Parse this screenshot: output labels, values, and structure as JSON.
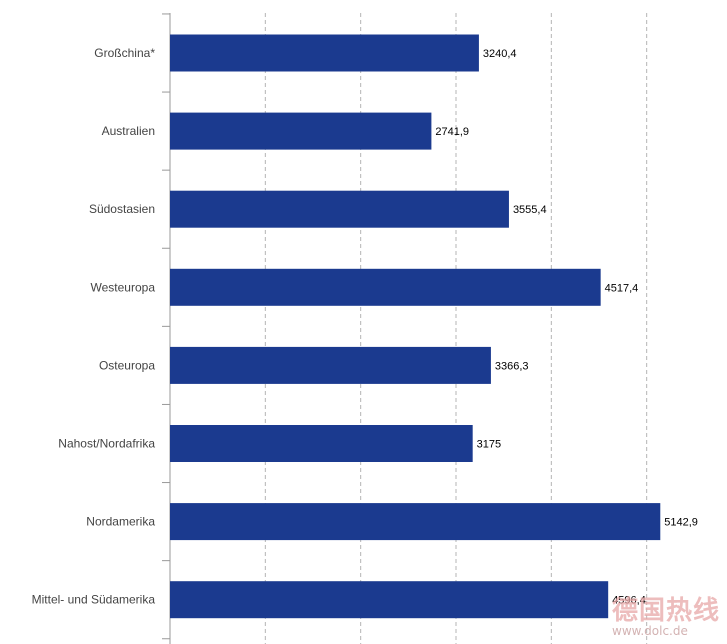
{
  "chart_data": {
    "type": "bar",
    "orientation": "horizontal",
    "categories": [
      "Großchina*",
      "Australien",
      "Südostasien",
      "Westeuropa",
      "Osteuropa",
      "Nahost/Nordafrika",
      "Nordamerika",
      "Mittel- und Südamerika"
    ],
    "values": [
      3240.4,
      2741.9,
      3555.4,
      4517.4,
      3366.3,
      3175,
      5142.9,
      4596.4
    ],
    "value_labels": [
      "3240,4",
      "2741,9",
      "3555,4",
      "4517,4",
      "3366,3",
      "3175",
      "5142,9",
      "4596,4"
    ],
    "xlim": [
      0,
      6000
    ],
    "grid": true,
    "title": "",
    "xlabel": "",
    "ylabel": "",
    "bar_color": "#1b3a8f"
  },
  "watermark": {
    "text_cn": "德国热线",
    "url": "www.dolc.de"
  }
}
